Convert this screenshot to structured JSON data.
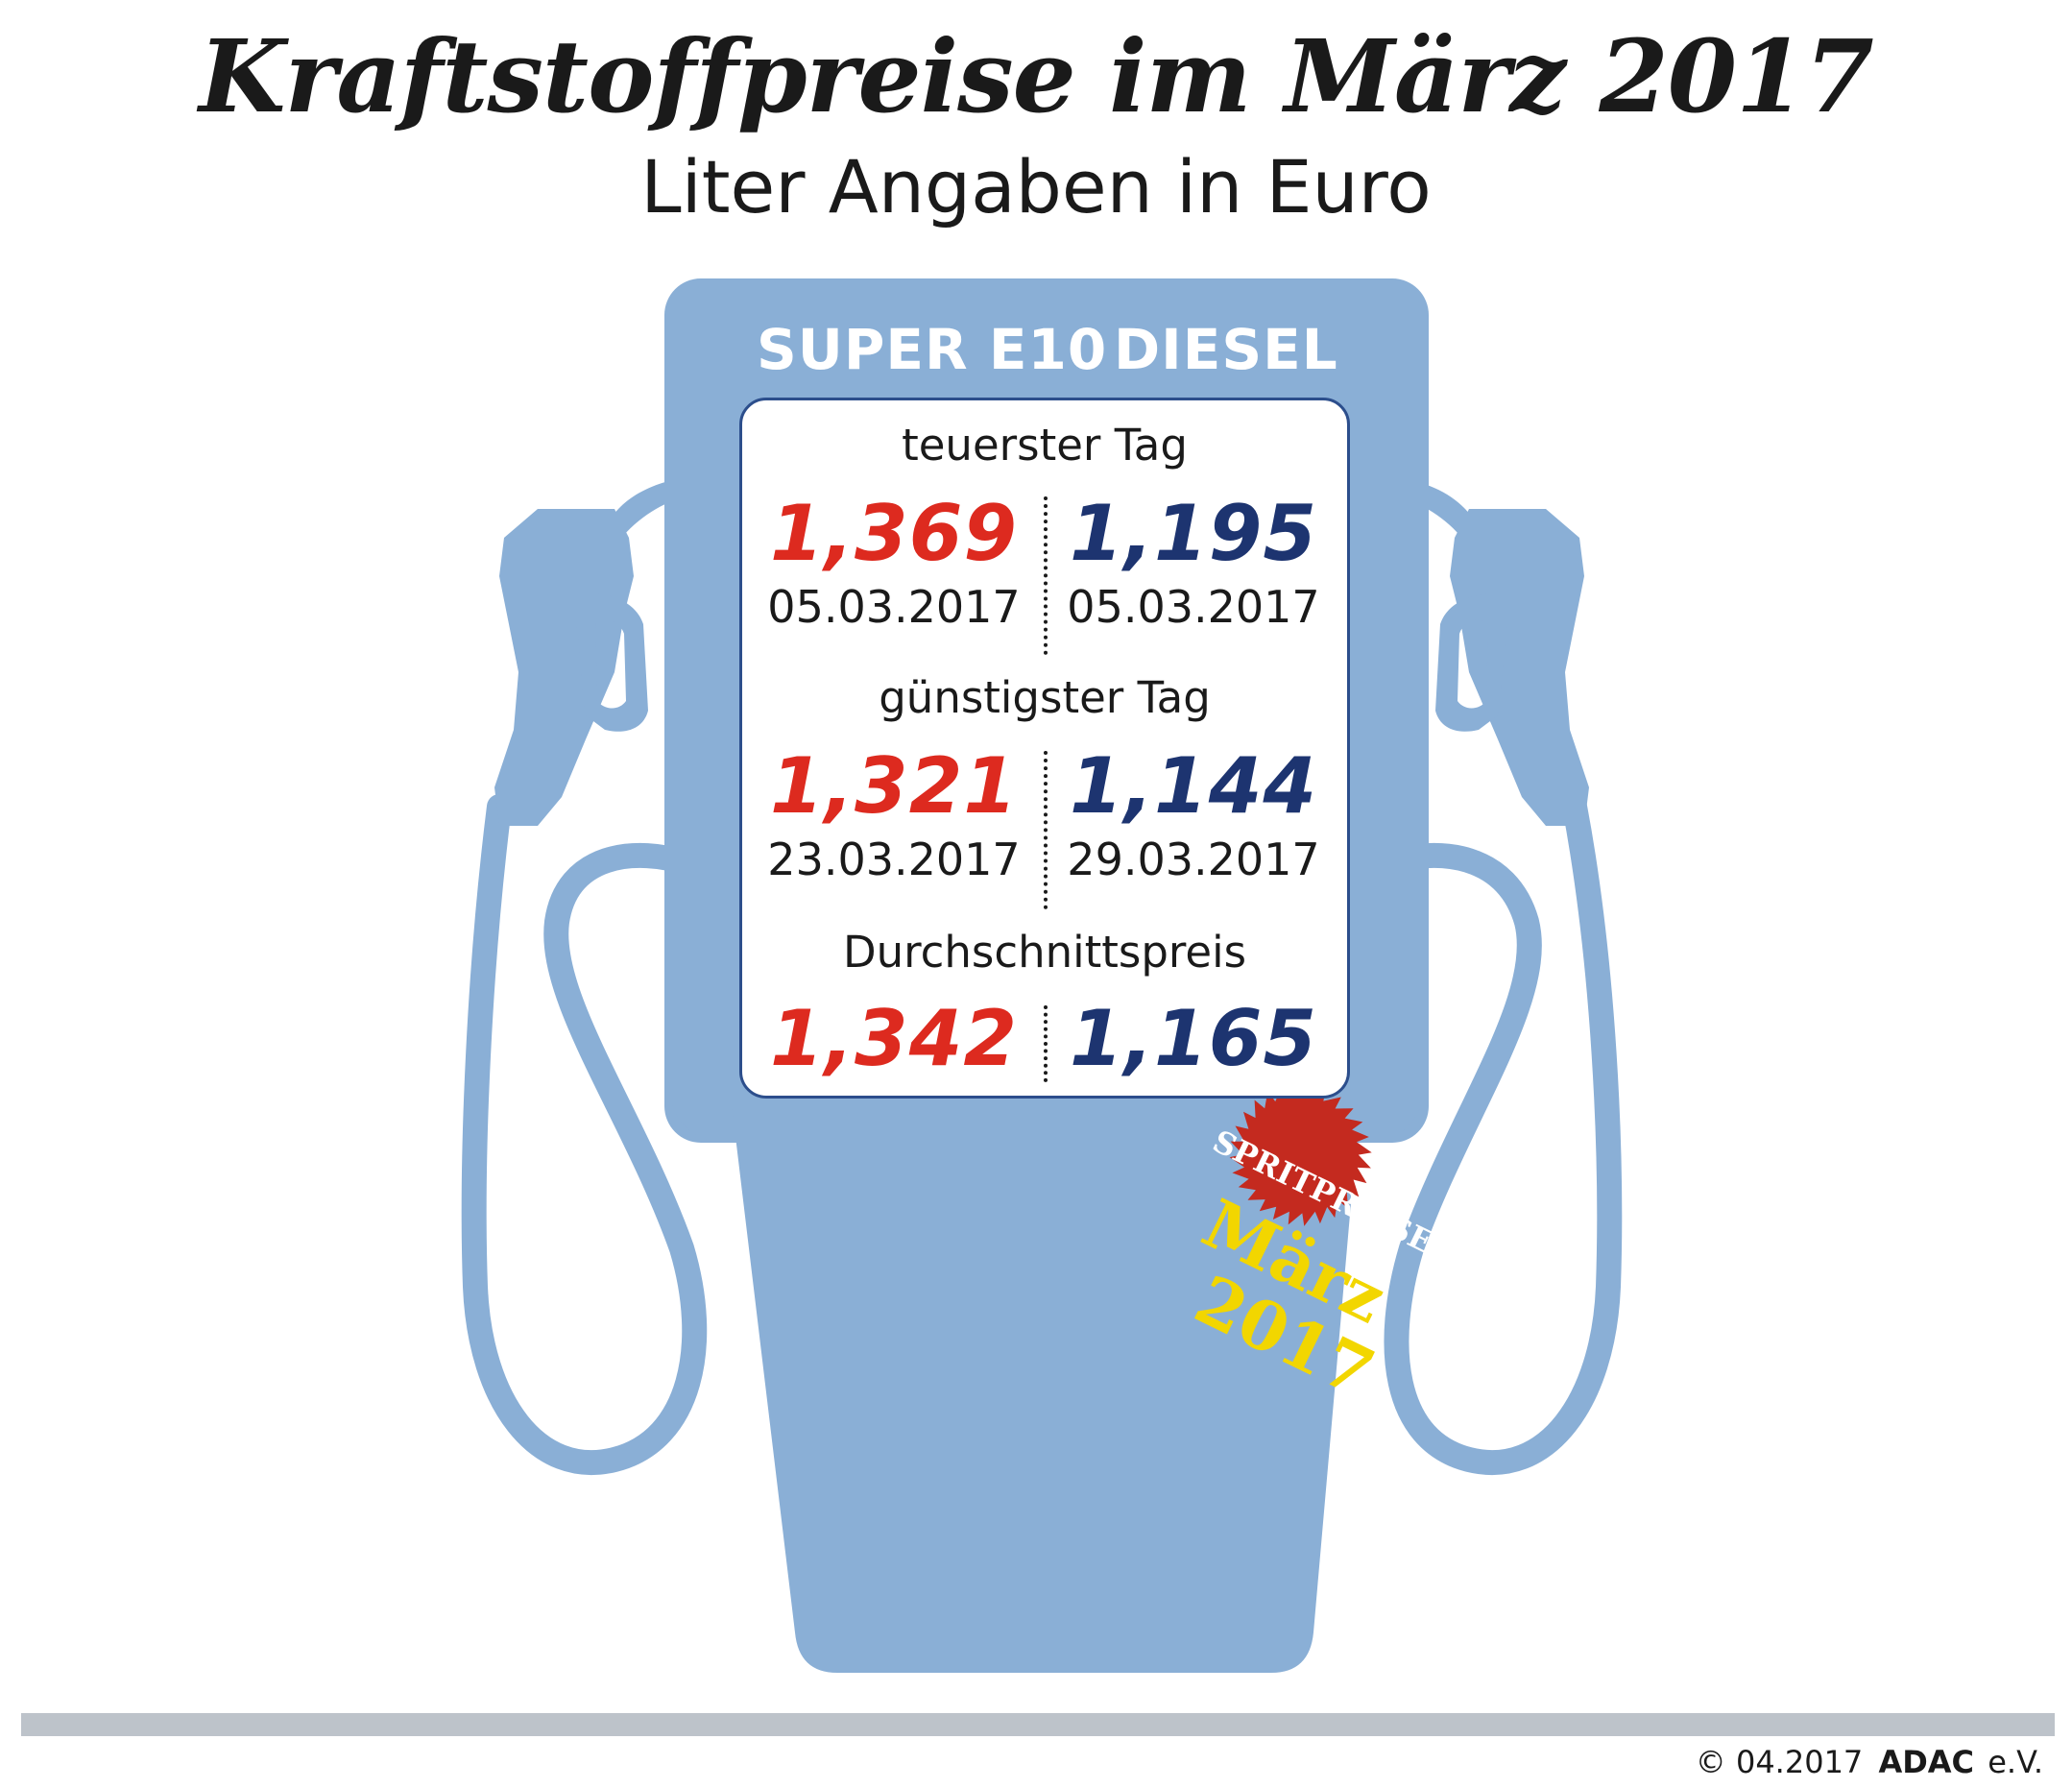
{
  "header": {
    "title": "Kraftstoffpreise im März 2017",
    "subtitle": "Liter Angaben in Euro"
  },
  "columns": {
    "e10": "SUPER E10",
    "diesel": "DIESEL"
  },
  "sections": [
    {
      "label": "teuerster Tag",
      "e10_price": "1,369",
      "e10_date": "05.03.2017",
      "diesel_price": "1,195",
      "diesel_date": "05.03.2017"
    },
    {
      "label": "günstigster Tag",
      "e10_price": "1,321",
      "e10_date": "23.03.2017",
      "diesel_price": "1,144",
      "diesel_date": "29.03.2017"
    },
    {
      "label": "Durchschnittspreis",
      "e10_price": "1,342",
      "diesel_price": "1,165"
    }
  ],
  "badge": {
    "top": "SPRITPREISE",
    "month": "März",
    "year": "2017"
  },
  "footer": {
    "copyright": "© 04.2017",
    "brand": "ADAC",
    "suffix": "e.V."
  },
  "colors": {
    "pump": "#8aafd6",
    "e10": "#dd2a1f",
    "diesel": "#1d3470",
    "badge": "#c42a1f",
    "badge_text": "#f2d600"
  }
}
